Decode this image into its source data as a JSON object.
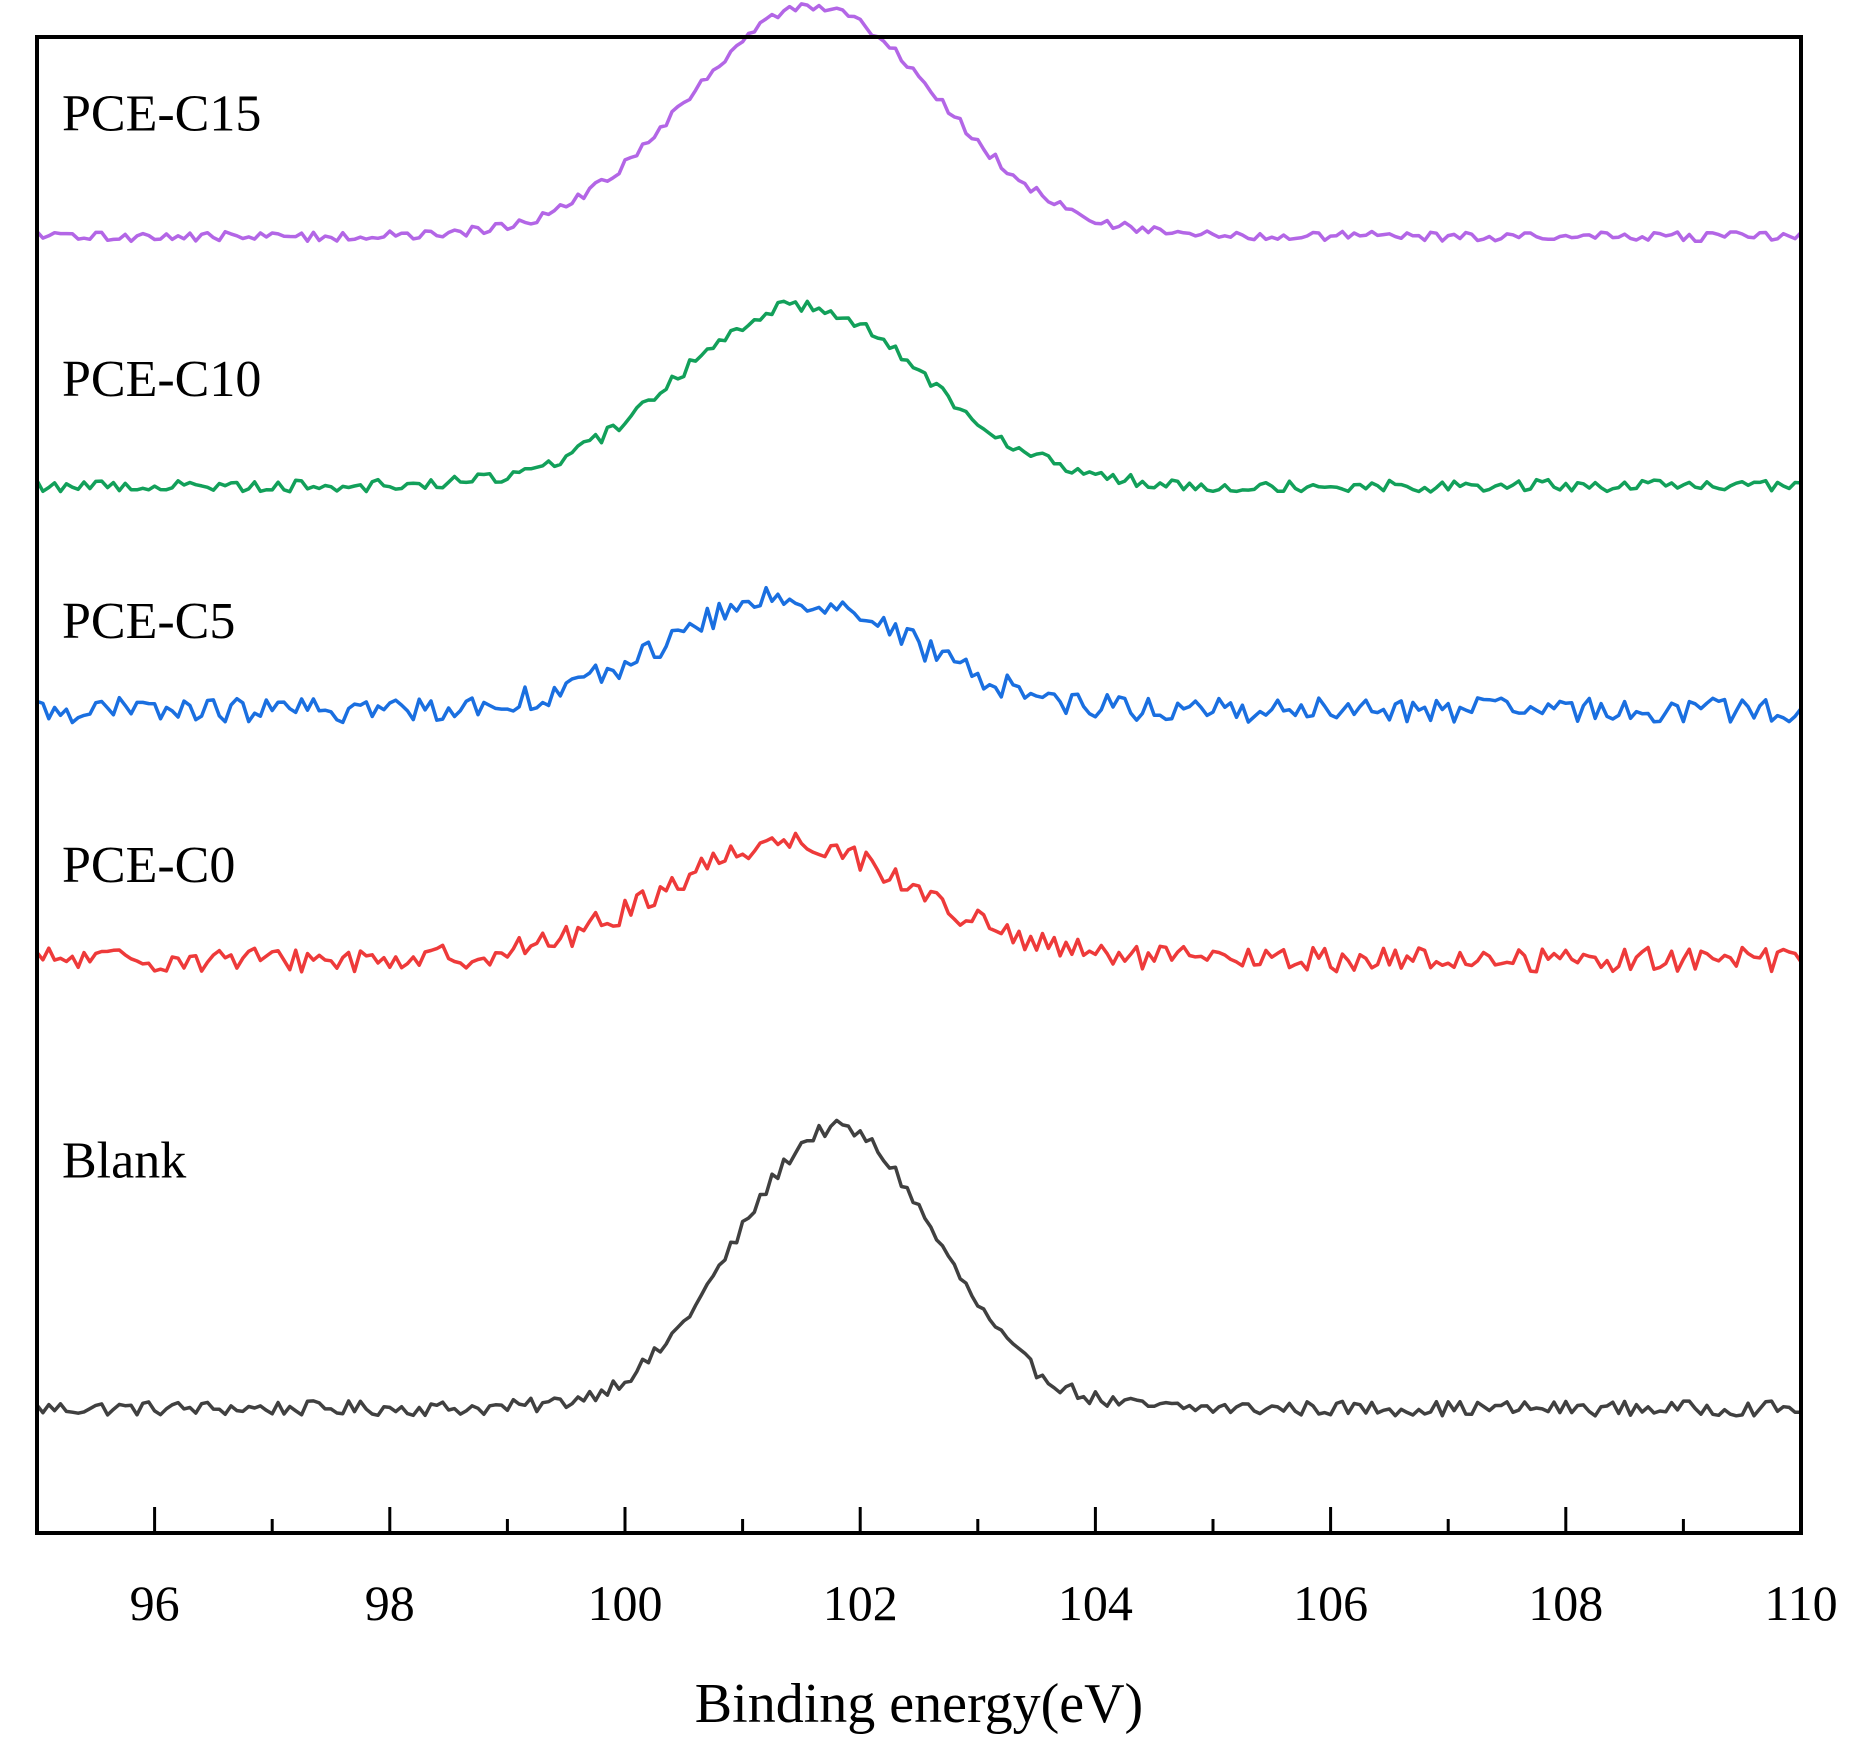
{
  "chart_data": {
    "type": "line",
    "title": "",
    "xlabel": "Binding energy(eV)",
    "ylabel": "",
    "xlim": [
      95,
      110
    ],
    "ylim": [
      0,
      12
    ],
    "xticks": [
      96,
      98,
      100,
      102,
      104,
      106,
      108,
      110
    ],
    "xtick_labels": [
      "96",
      "98",
      "100",
      "102",
      "104",
      "106",
      "108",
      "110"
    ],
    "grid": false,
    "legend": "none (inline labels at left)",
    "series": [
      {
        "name": "Blank",
        "color": "#404040",
        "baseline": 1.0,
        "peak_center": 101.8,
        "peak_sigma": 0.85,
        "peak_height": 2.25,
        "noise": 0.06
      },
      {
        "name": "PCE-C0",
        "color": "#ee3a3a",
        "baseline": 4.6,
        "peak_center": 101.4,
        "peak_sigma": 1.05,
        "peak_height": 0.95,
        "noise": 0.1
      },
      {
        "name": "PCE-C5",
        "color": "#1a6fe0",
        "baseline": 6.6,
        "peak_center": 101.4,
        "peak_sigma": 1.05,
        "peak_height": 0.9,
        "noise": 0.1
      },
      {
        "name": "PCE-C10",
        "color": "#12a05a",
        "baseline": 8.4,
        "peak_center": 101.5,
        "peak_sigma": 1.05,
        "peak_height": 1.45,
        "noise": 0.05
      },
      {
        "name": "PCE-C15",
        "color": "#b366e6",
        "baseline": 10.4,
        "peak_center": 101.6,
        "peak_sigma": 1.05,
        "peak_height": 1.85,
        "noise": 0.04
      }
    ],
    "annotations": [
      {
        "text": "PCE-C15",
        "series": "PCE-C15"
      },
      {
        "text": "PCE-C10",
        "series": "PCE-C10"
      },
      {
        "text": "PCE-C5",
        "series": "PCE-C5"
      },
      {
        "text": "PCE-C0",
        "series": "PCE-C0"
      },
      {
        "text": "Blank",
        "series": "Blank"
      }
    ]
  }
}
